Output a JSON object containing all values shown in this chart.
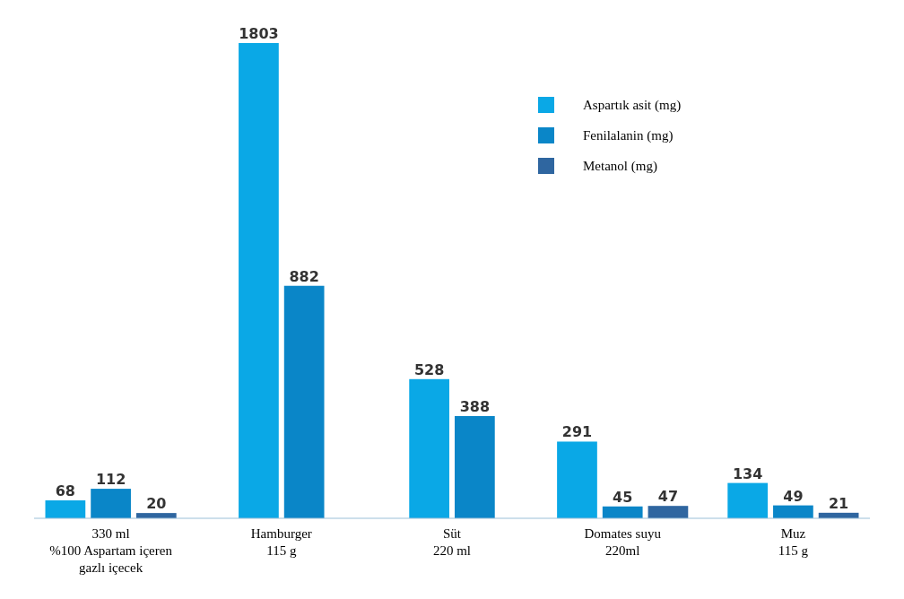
{
  "chart_data": {
    "type": "bar",
    "relative": false,
    "categories": [
      "330 ml\n%100 Aspartam içeren\ngazlı içecek",
      "Hamburger\n115 g",
      "Süt\n220 ml",
      "Domates suyu\n220ml",
      "Muz\n115 g"
    ],
    "series": [
      {
        "name": "Aspartık asit (mg)",
        "color": "#0aa8e6",
        "values": [
          68,
          1803,
          528,
          291,
          134
        ]
      },
      {
        "name": "Fenilalanin (mg)",
        "color": "#0a86c8",
        "values": [
          112,
          882,
          388,
          45,
          49
        ]
      },
      {
        "name": "Metanol (mg)",
        "color": "#2f66a0",
        "values": [
          20,
          null,
          null,
          47,
          21
        ]
      }
    ],
    "data_labels": true,
    "legend": "top right"
  }
}
